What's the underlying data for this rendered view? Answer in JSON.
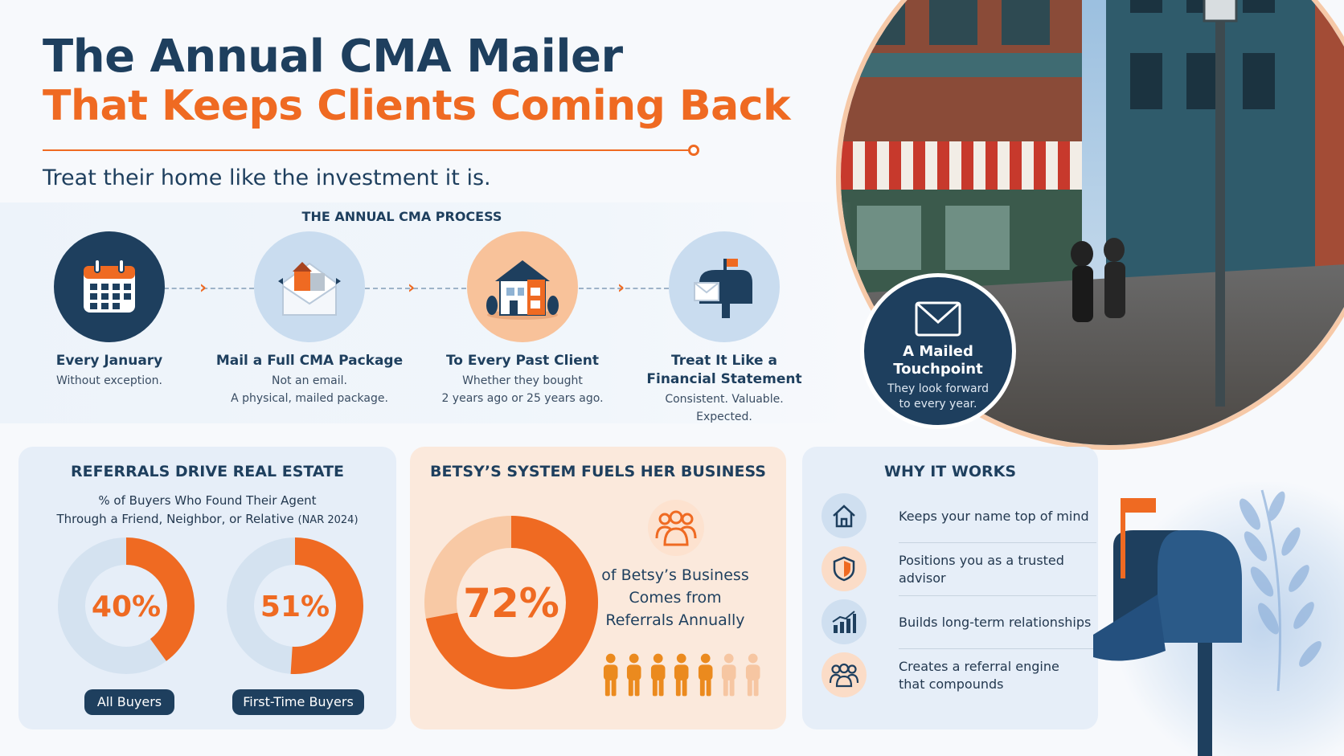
{
  "header": {
    "title_line1": "The Annual CMA Mailer",
    "title_line2": "That Keeps Clients Coming Back",
    "subtitle": "Treat their home like the investment it is."
  },
  "process": {
    "title": "THE ANNUAL CMA PROCESS",
    "steps": [
      {
        "title": "Every January",
        "desc_line1": "Without exception.",
        "desc_line2": "",
        "icon": "calendar-icon"
      },
      {
        "title": "Mail a Full CMA Package",
        "desc_line1": "Not an email.",
        "desc_line2": "A physical, mailed package.",
        "icon": "envelope-houses-icon"
      },
      {
        "title": "To Every Past Client",
        "desc_line1": "Whether they bought",
        "desc_line2": "2 years ago or 25 years ago.",
        "icon": "house-icon"
      },
      {
        "title_line1": "Treat It Like a",
        "title_line2": "Financial Statement",
        "desc_line1": "Consistent. Valuable.",
        "desc_line2": "Expected.",
        "icon": "mailbox-icon"
      }
    ]
  },
  "touchpoint": {
    "title_line1": "A Mailed",
    "title_line2": "Touchpoint",
    "desc_line1": "They look forward",
    "desc_line2": "to every year."
  },
  "referrals": {
    "title": "REFERRALS DRIVE REAL ESTATE",
    "desc_line1": "% of Buyers Who Found Their Agent",
    "desc_line2": "Through a Friend, Neighbor, or Relative",
    "source": "(NAR 2024)",
    "donuts": [
      {
        "value": 40,
        "label": "40%",
        "pill": "All Buyers"
      },
      {
        "value": 51,
        "label": "51%",
        "pill": "First-Time Buyers"
      }
    ]
  },
  "betsy": {
    "title": "BETSY’S SYSTEM FUELS HER BUSINESS",
    "value": 72,
    "label": "72%",
    "desc_line1": "of Betsy’s Business",
    "desc_line2": "Comes from",
    "desc_line3": "Referrals Annually",
    "people_filled": 5,
    "people_total": 7
  },
  "why": {
    "title": "WHY IT WORKS",
    "items": [
      {
        "text": "Keeps your name top of mind",
        "icon": "house-outline-icon"
      },
      {
        "text": "Positions you as a trusted advisor",
        "icon": "shield-icon"
      },
      {
        "text": "Builds long-term relationships",
        "icon": "growth-chart-icon"
      },
      {
        "text_line1": "Creates a referral engine",
        "text_line2": "that compounds",
        "icon": "people-icon"
      }
    ]
  },
  "colors": {
    "navy": "#1e3f5e",
    "orange": "#ef6a22",
    "light_orange": "#f6c9a8",
    "light_blue": "#dde8f4"
  }
}
